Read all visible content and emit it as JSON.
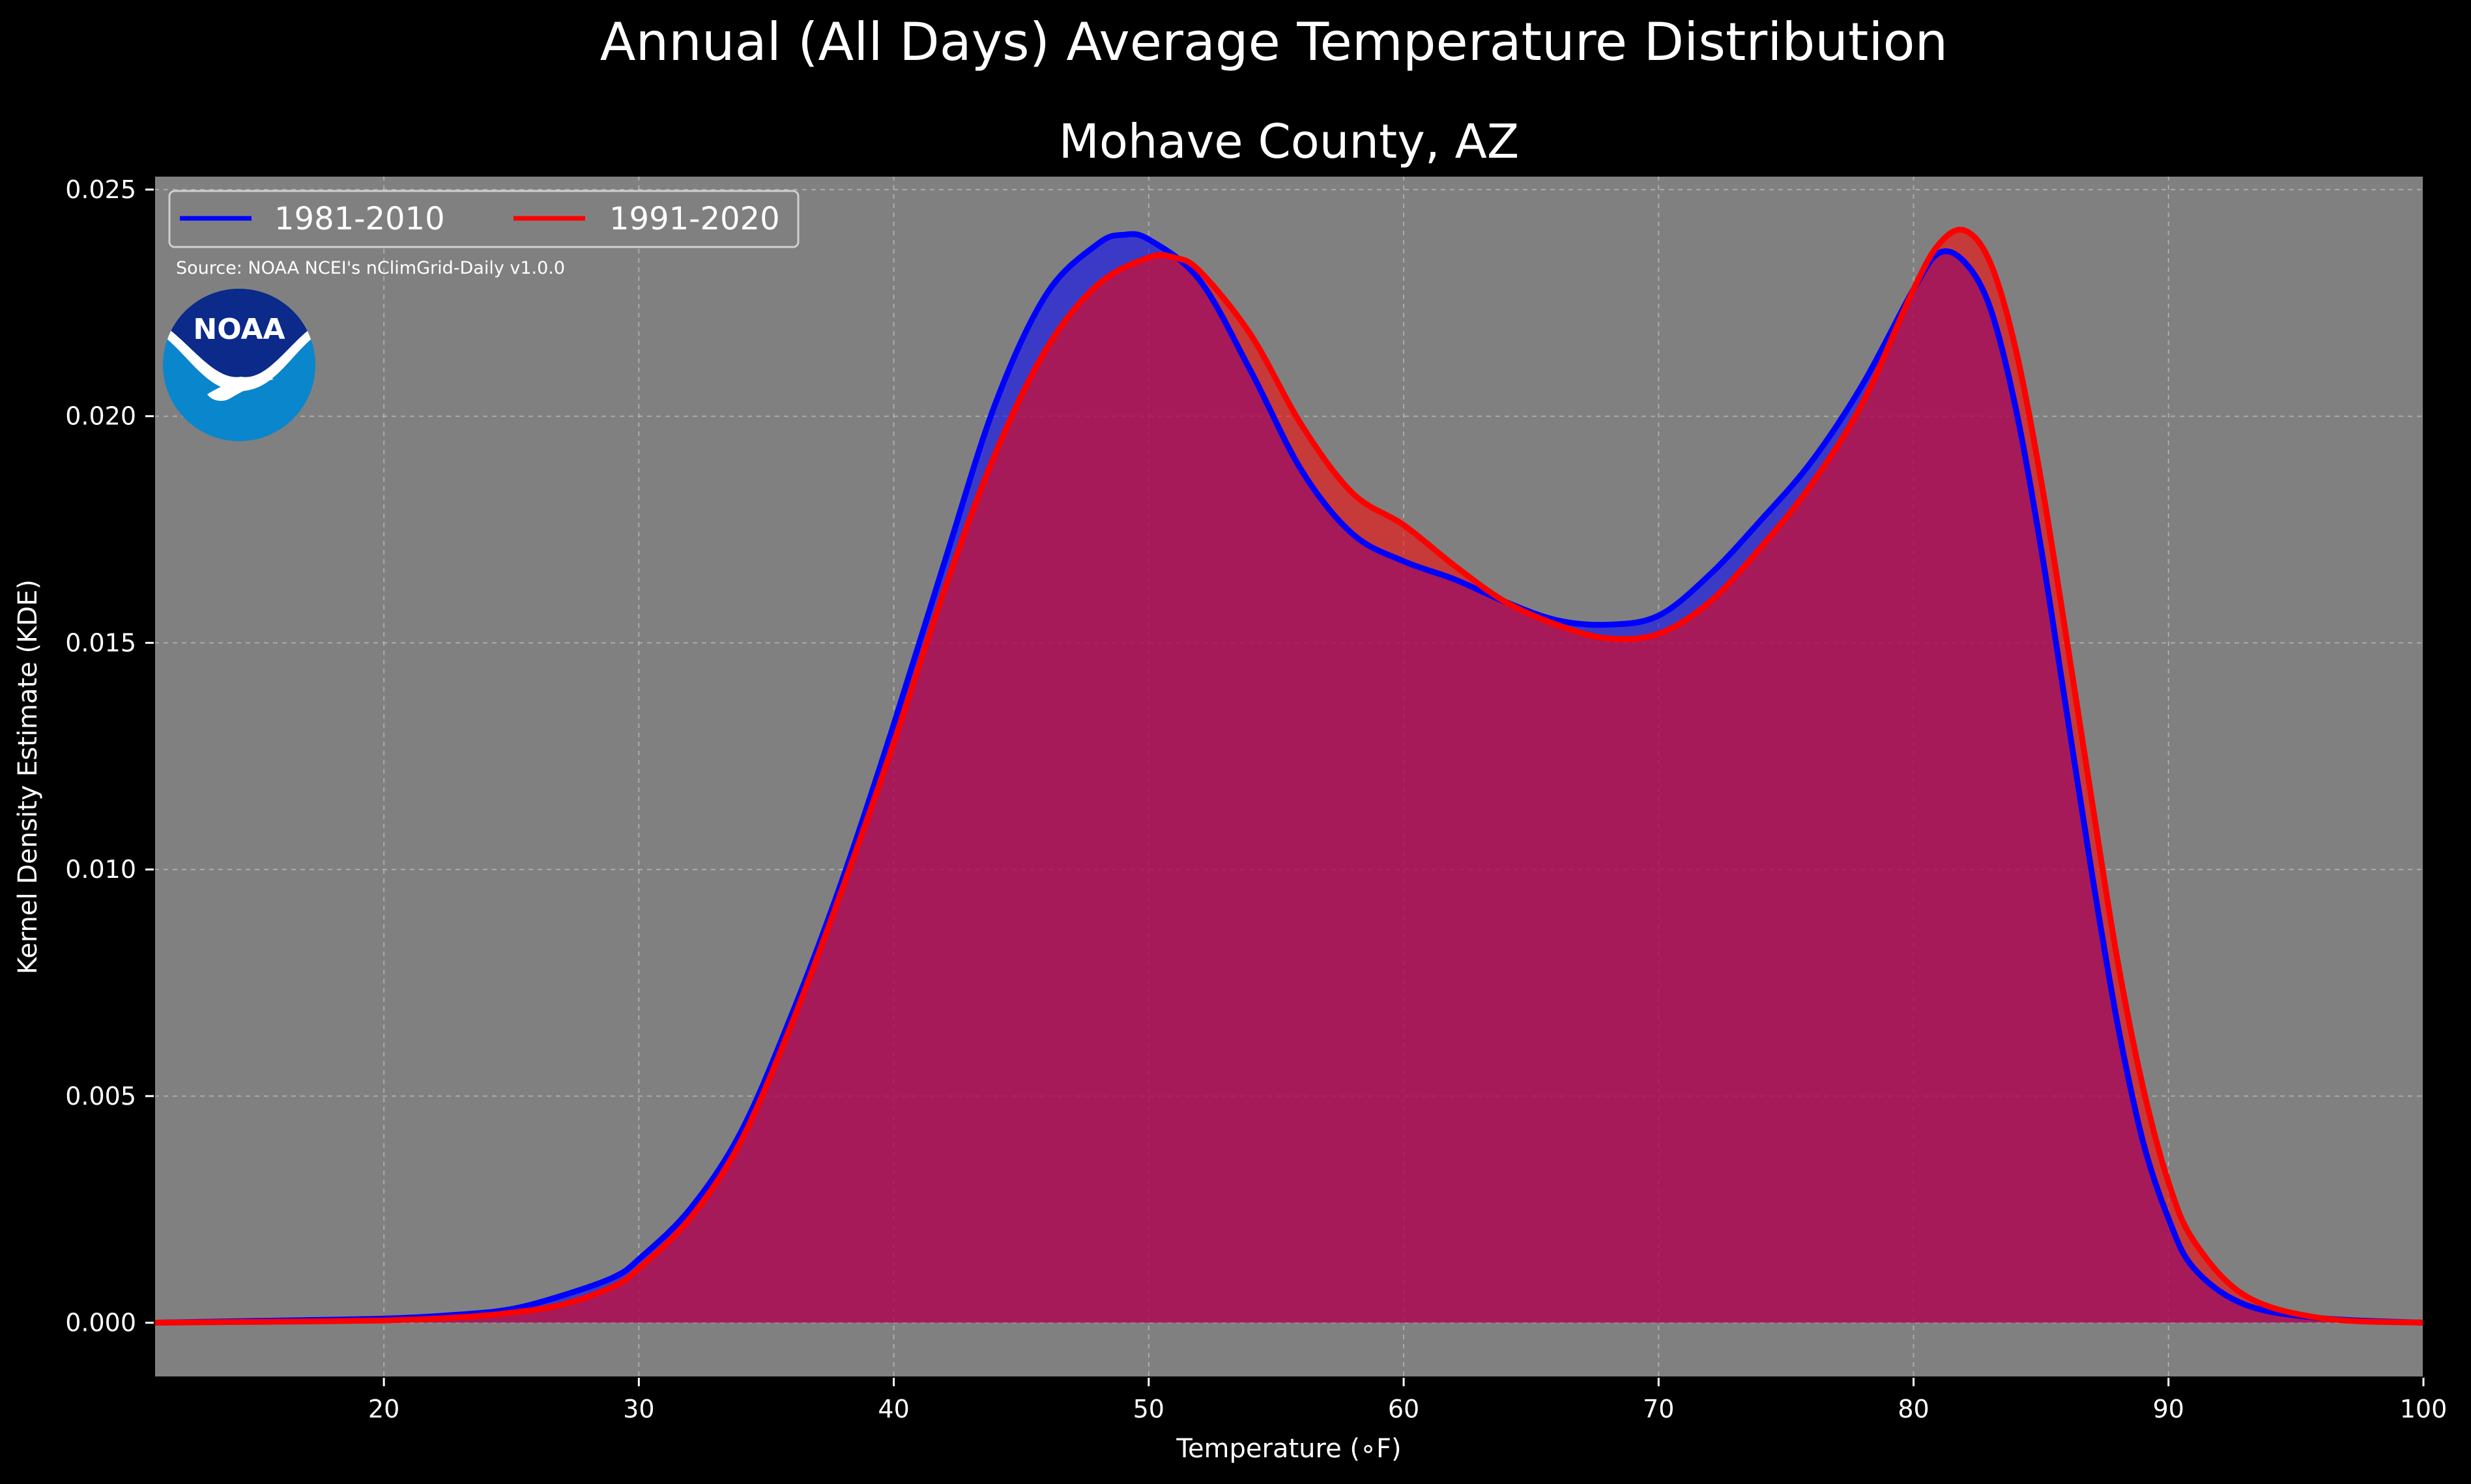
{
  "colors": {
    "background": "#000000",
    "plot_background": "#808080",
    "series_1981_2010": "#0000ff",
    "series_1991_2020": "#ff0000",
    "overlap_fill": "#9e1e5c",
    "noaa_dark": "#0b2a8a",
    "noaa_light": "#0a86cc"
  },
  "logo": {
    "name": "NOAA logo",
    "text": "NOAA"
  },
  "chart_data": {
    "type": "area",
    "title": "Annual (All Days) Average Temperature Distribution",
    "subtitle": "Mohave County, AZ",
    "xlabel": "Temperature (∘F)",
    "ylabel": "Kernel Density Estimate (KDE)",
    "xlim": [
      11,
      100
    ],
    "ylim": [
      -0.0012,
      0.0253
    ],
    "xticks": [
      20,
      30,
      40,
      50,
      60,
      70,
      80,
      90,
      100
    ],
    "yticks": [
      0.0,
      0.005,
      0.01,
      0.015,
      0.02,
      0.025
    ],
    "ytick_labels": [
      "0.000",
      "0.005",
      "0.010",
      "0.015",
      "0.020",
      "0.025"
    ],
    "grid": true,
    "legend_position": "upper-left",
    "annotation": "Source: NOAA NCEI's nClimGrid-Daily v1.0.0",
    "series": [
      {
        "name": "1981-2010",
        "color": "#0000ff",
        "points": [
          [
            11,
            0.0
          ],
          [
            15,
            4e-05
          ],
          [
            20,
            9e-05
          ],
          [
            23,
            0.00018
          ],
          [
            25,
            0.0003
          ],
          [
            27,
            0.0006
          ],
          [
            29,
            0.001
          ],
          [
            30,
            0.0014
          ],
          [
            32,
            0.0025
          ],
          [
            34,
            0.0042
          ],
          [
            36,
            0.0068
          ],
          [
            38,
            0.0098
          ],
          [
            40,
            0.0132
          ],
          [
            42,
            0.0168
          ],
          [
            44,
            0.0203
          ],
          [
            46,
            0.0227
          ],
          [
            48,
            0.0238
          ],
          [
            49,
            0.024
          ],
          [
            50,
            0.0239
          ],
          [
            52,
            0.023
          ],
          [
            54,
            0.021
          ],
          [
            56,
            0.0188
          ],
          [
            58,
            0.0174
          ],
          [
            60,
            0.0168
          ],
          [
            62,
            0.0164
          ],
          [
            64,
            0.0159
          ],
          [
            66,
            0.0155
          ],
          [
            68,
            0.0154
          ],
          [
            70,
            0.0156
          ],
          [
            72,
            0.0165
          ],
          [
            74,
            0.0177
          ],
          [
            76,
            0.019
          ],
          [
            78,
            0.0207
          ],
          [
            80,
            0.0228
          ],
          [
            81,
            0.0236
          ],
          [
            82,
            0.0234
          ],
          [
            83,
            0.0224
          ],
          [
            84,
            0.0202
          ],
          [
            85,
            0.0171
          ],
          [
            86,
            0.0135
          ],
          [
            87,
            0.0099
          ],
          [
            88,
            0.0066
          ],
          [
            89,
            0.004
          ],
          [
            90,
            0.0023
          ],
          [
            91,
            0.0012
          ],
          [
            93,
            0.0004
          ],
          [
            96,
            0.0001
          ],
          [
            100,
            0.0
          ]
        ]
      },
      {
        "name": "1991-2020",
        "color": "#ff0000",
        "points": [
          [
            11,
            0.0
          ],
          [
            15,
            2e-05
          ],
          [
            20,
            5e-05
          ],
          [
            23,
            0.00012
          ],
          [
            25,
            0.00022
          ],
          [
            27,
            0.0004
          ],
          [
            29,
            0.0008
          ],
          [
            30,
            0.0012
          ],
          [
            32,
            0.0023
          ],
          [
            34,
            0.004
          ],
          [
            36,
            0.0066
          ],
          [
            38,
            0.0096
          ],
          [
            40,
            0.0128
          ],
          [
            42,
            0.0162
          ],
          [
            44,
            0.0192
          ],
          [
            46,
            0.0215
          ],
          [
            48,
            0.0229
          ],
          [
            50,
            0.0235
          ],
          [
            51,
            0.0235
          ],
          [
            52,
            0.0232
          ],
          [
            54,
            0.0218
          ],
          [
            56,
            0.0198
          ],
          [
            58,
            0.0183
          ],
          [
            60,
            0.0176
          ],
          [
            62,
            0.0167
          ],
          [
            64,
            0.0159
          ],
          [
            66,
            0.0154
          ],
          [
            68,
            0.0151
          ],
          [
            70,
            0.0152
          ],
          [
            72,
            0.0159
          ],
          [
            74,
            0.0171
          ],
          [
            76,
            0.0185
          ],
          [
            78,
            0.0203
          ],
          [
            80,
            0.0228
          ],
          [
            81,
            0.0238
          ],
          [
            82,
            0.0241
          ],
          [
            83,
            0.0234
          ],
          [
            84,
            0.0215
          ],
          [
            85,
            0.0186
          ],
          [
            86,
            0.0151
          ],
          [
            87,
            0.0115
          ],
          [
            88,
            0.008
          ],
          [
            89,
            0.0052
          ],
          [
            90,
            0.0031
          ],
          [
            91,
            0.0018
          ],
          [
            93,
            0.0006
          ],
          [
            96,
            0.0001
          ],
          [
            100,
            0.0
          ]
        ]
      }
    ]
  }
}
